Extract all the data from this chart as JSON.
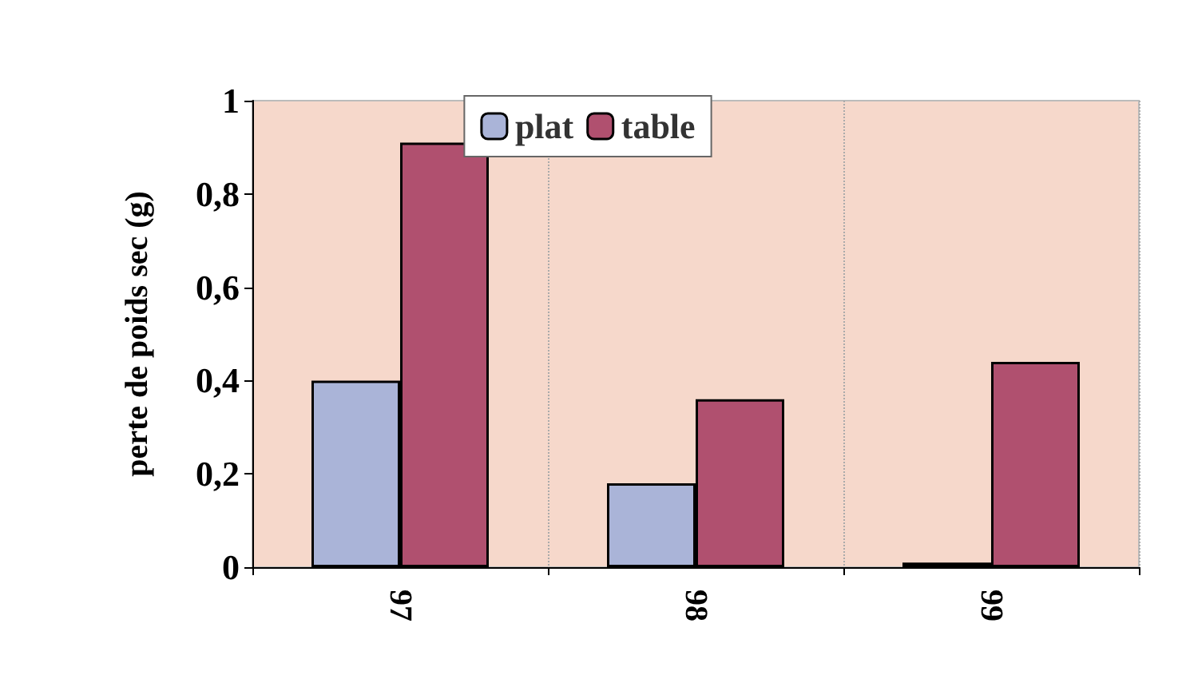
{
  "chart_data": {
    "type": "bar",
    "ylabel": "perte de poids sec (g)",
    "categories": [
      "97",
      "98",
      "99"
    ],
    "series": [
      {
        "name": "plat",
        "color": "#aab4d8",
        "values": [
          0.4,
          0.18,
          0.01
        ]
      },
      {
        "name": "table",
        "color": "#b0506f",
        "values": [
          0.91,
          0.36,
          0.44
        ]
      }
    ],
    "ylim": [
      0,
      1
    ],
    "yticks": [
      0,
      {
        "value": 0.2,
        "label": "0,2"
      },
      {
        "value": 0.4,
        "label": "0,4"
      },
      {
        "value": 0.6,
        "label": "0,6"
      },
      {
        "value": 0.8,
        "label": "0,8"
      },
      1
    ],
    "grid": "x",
    "legend": "top"
  }
}
